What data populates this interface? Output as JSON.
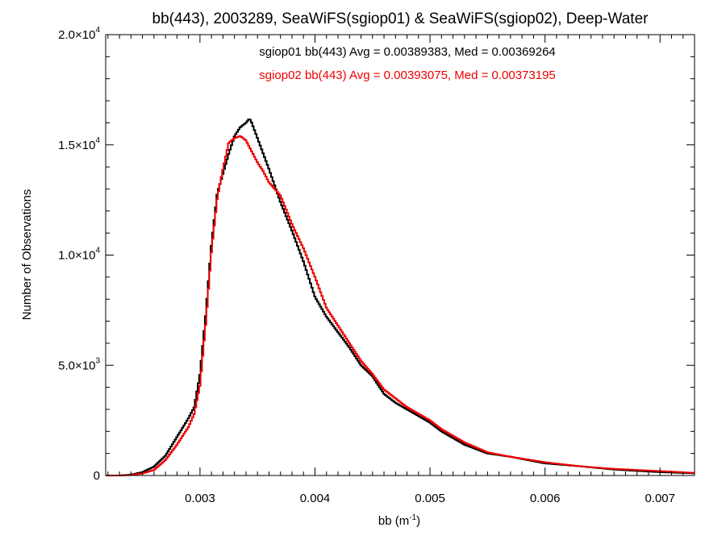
{
  "chart_data": {
    "type": "line",
    "title": "bb(443), 2003289, SeaWiFS(sgiop01) & SeaWiFS(sgiop02), Deep-Water",
    "xlabel_base": "bb (m",
    "xlabel_exp": "-1",
    "xlabel_tail": ")",
    "ylabel": "Number of Observations",
    "xlim": [
      0.00218,
      0.0073
    ],
    "ylim": [
      0,
      20000
    ],
    "x_ticks": [
      {
        "value": 0.003,
        "label": "0.003"
      },
      {
        "value": 0.004,
        "label": "0.004"
      },
      {
        "value": 0.005,
        "label": "0.005"
      },
      {
        "value": 0.006,
        "label": "0.006"
      },
      {
        "value": 0.007,
        "label": "0.007"
      }
    ],
    "y_ticks": [
      {
        "value": 0,
        "mantissa": "0",
        "exp": ""
      },
      {
        "value": 5000,
        "mantissa": "5.0×10",
        "exp": "3"
      },
      {
        "value": 10000,
        "mantissa": "1.0×10",
        "exp": "4"
      },
      {
        "value": 15000,
        "mantissa": "1.5×10",
        "exp": "4"
      },
      {
        "value": 20000,
        "mantissa": "2.0×10",
        "exp": "4"
      }
    ],
    "grid": false,
    "series": [
      {
        "name": "sgiop01",
        "color": "#000000",
        "label": "sgiop01 bb(443) Avg = 0.00389383, Med = 0.00369264",
        "x": [
          0.00218,
          0.0023,
          0.0024,
          0.0025,
          0.0026,
          0.0027,
          0.0028,
          0.0029,
          0.00295,
          0.003,
          0.00305,
          0.0031,
          0.00315,
          0.0032,
          0.00325,
          0.0033,
          0.00335,
          0.0034,
          0.00343,
          0.00345,
          0.0035,
          0.00355,
          0.0036,
          0.0037,
          0.0038,
          0.0039,
          0.004,
          0.0041,
          0.0042,
          0.0043,
          0.0044,
          0.0045,
          0.0046,
          0.0047,
          0.0048,
          0.0049,
          0.005,
          0.0051,
          0.0052,
          0.0053,
          0.0055,
          0.0057,
          0.006,
          0.0063,
          0.0066,
          0.007,
          0.0073
        ],
        "y": [
          0,
          0,
          40,
          150,
          400,
          900,
          1750,
          2600,
          3100,
          4600,
          7300,
          10500,
          12800,
          13700,
          14600,
          15400,
          15800,
          16000,
          16200,
          16000,
          15300,
          14600,
          13900,
          12400,
          11100,
          9700,
          8100,
          7200,
          6500,
          5800,
          5000,
          4500,
          3700,
          3300,
          3000,
          2700,
          2400,
          2000,
          1700,
          1400,
          1000,
          850,
          550,
          420,
          270,
          150,
          100
        ]
      },
      {
        "name": "sgiop02",
        "color": "#ee0000",
        "label": "sgiop02 bb(443) Avg = 0.00393075, Med = 0.00373195",
        "x": [
          0.00218,
          0.0023,
          0.0024,
          0.0025,
          0.0026,
          0.0027,
          0.0028,
          0.0029,
          0.00295,
          0.003,
          0.00305,
          0.0031,
          0.00315,
          0.0032,
          0.00325,
          0.0033,
          0.00335,
          0.0034,
          0.00343,
          0.00345,
          0.0035,
          0.00355,
          0.0036,
          0.0037,
          0.0038,
          0.0039,
          0.004,
          0.0041,
          0.0042,
          0.0043,
          0.0044,
          0.0045,
          0.0046,
          0.0047,
          0.0048,
          0.0049,
          0.005,
          0.0051,
          0.0052,
          0.0053,
          0.0055,
          0.0057,
          0.006,
          0.0063,
          0.0066,
          0.007,
          0.0073
        ],
        "y": [
          0,
          0,
          20,
          90,
          250,
          700,
          1400,
          2200,
          2800,
          4100,
          6900,
          10200,
          12600,
          13900,
          15100,
          15300,
          15400,
          15200,
          14900,
          14700,
          14200,
          13800,
          13300,
          12700,
          11400,
          10300,
          9000,
          7600,
          6800,
          6000,
          5200,
          4600,
          3900,
          3500,
          3100,
          2800,
          2500,
          2100,
          1800,
          1500,
          1050,
          850,
          600,
          420,
          300,
          200,
          120
        ]
      }
    ]
  }
}
